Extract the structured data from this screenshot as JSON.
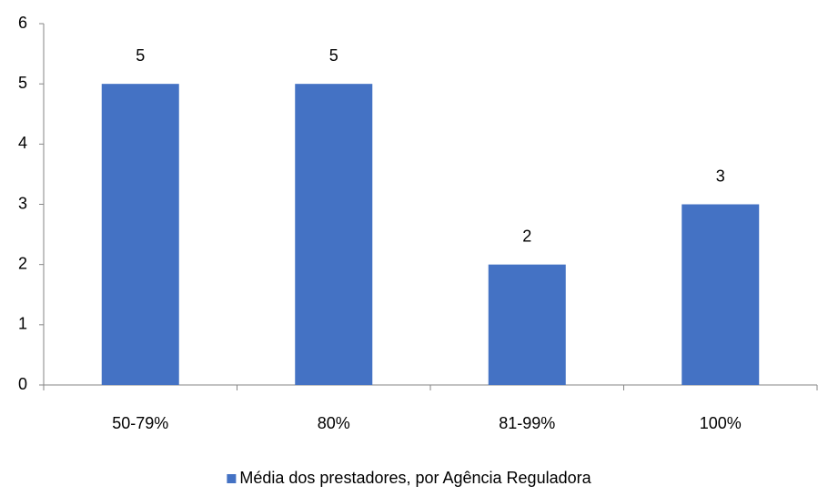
{
  "chart_data": {
    "type": "bar",
    "categories": [
      "50-79%",
      "80%",
      "81-99%",
      "100%"
    ],
    "series": [
      {
        "name": "Média dos prestadores, por Agência Reguladora",
        "color": "#4472c4",
        "values": [
          5,
          5,
          2,
          3
        ]
      }
    ],
    "ylim": [
      0,
      6
    ],
    "yticks": [
      0,
      1,
      2,
      3,
      4,
      5,
      6
    ],
    "grid": false,
    "legend": "bottom"
  }
}
